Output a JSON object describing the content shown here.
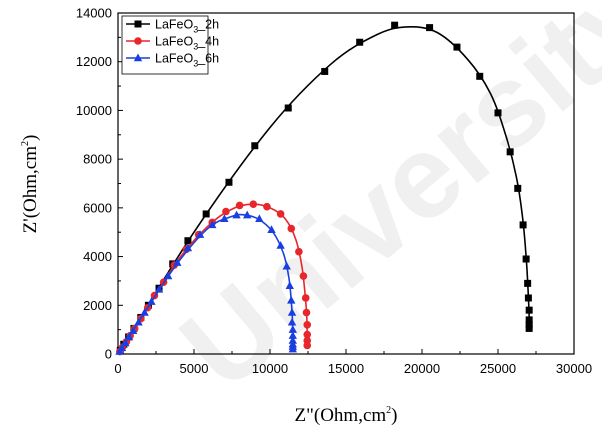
{
  "watermark": "University",
  "chart_data": {
    "type": "scatter",
    "xlabel": {
      "main": "Z\"(Ohm,cm",
      "sup": "2",
      "end": ")"
    },
    "ylabel": {
      "main": "Z'(Ohm,cm",
      "sup": "2",
      "end": ")"
    },
    "xlim": [
      0,
      30000
    ],
    "ylim": [
      0,
      14000
    ],
    "xticks": [
      0,
      5000,
      10000,
      15000,
      20000,
      25000,
      30000
    ],
    "yticks": [
      0,
      2000,
      4000,
      6000,
      8000,
      10000,
      12000,
      14000
    ],
    "legend_position": "top-left",
    "grid": false,
    "series": [
      {
        "name": {
          "pre": "LaFeO",
          "sub": "3",
          "post": "_2h"
        },
        "color": "#000000",
        "marker": "square",
        "points": [
          [
            150,
            150
          ],
          [
            380,
            400
          ],
          [
            700,
            700
          ],
          [
            1050,
            1050
          ],
          [
            1500,
            1500
          ],
          [
            2000,
            2000
          ],
          [
            2700,
            2700
          ],
          [
            3600,
            3700
          ],
          [
            4600,
            4650
          ],
          [
            5800,
            5750
          ],
          [
            7300,
            7050
          ],
          [
            9000,
            8550
          ],
          [
            11200,
            10100
          ],
          [
            13600,
            11600
          ],
          [
            15900,
            12800
          ],
          [
            18200,
            13500
          ],
          [
            20500,
            13400
          ],
          [
            22300,
            12600
          ],
          [
            23800,
            11400
          ],
          [
            25000,
            9900
          ],
          [
            25800,
            8300
          ],
          [
            26300,
            6800
          ],
          [
            26650,
            5300
          ],
          [
            26850,
            3900
          ],
          [
            26950,
            2900
          ],
          [
            27000,
            2300
          ],
          [
            27050,
            1800
          ],
          [
            27050,
            1400
          ],
          [
            27050,
            1200
          ],
          [
            27050,
            1050
          ]
        ],
        "curve": [
          [
            0,
            0
          ],
          [
            5000,
            5000
          ],
          [
            10000,
            9300
          ],
          [
            14000,
            11900
          ],
          [
            17000,
            13100
          ],
          [
            19000,
            13430
          ],
          [
            21000,
            13200
          ],
          [
            23000,
            12100
          ],
          [
            24500,
            10700
          ],
          [
            25500,
            9000
          ],
          [
            26200,
            7300
          ],
          [
            26600,
            5700
          ],
          [
            26850,
            4000
          ],
          [
            26980,
            2600
          ],
          [
            27050,
            1500
          ],
          [
            27050,
            1000
          ]
        ]
      },
      {
        "name": {
          "pre": "LaFeO",
          "sub": "3",
          "post": "_4h"
        },
        "color": "#e8262b",
        "marker": "circle",
        "points": [
          [
            120,
            100
          ],
          [
            300,
            280
          ],
          [
            550,
            500
          ],
          [
            800,
            750
          ],
          [
            1100,
            1050
          ],
          [
            1500,
            1450
          ],
          [
            1950,
            1900
          ],
          [
            2400,
            2400
          ],
          [
            3000,
            2950
          ],
          [
            3700,
            3650
          ],
          [
            4500,
            4300
          ],
          [
            5300,
            4900
          ],
          [
            6200,
            5400
          ],
          [
            7100,
            5850
          ],
          [
            8000,
            6100
          ],
          [
            8900,
            6150
          ],
          [
            9800,
            6050
          ],
          [
            10700,
            5750
          ],
          [
            11400,
            5150
          ],
          [
            11900,
            4200
          ],
          [
            12200,
            3200
          ],
          [
            12350,
            2300
          ],
          [
            12400,
            1700
          ],
          [
            12450,
            1200
          ],
          [
            12450,
            800
          ],
          [
            12450,
            550
          ],
          [
            12450,
            350
          ]
        ],
        "curve": [
          [
            0,
            0
          ],
          [
            2000,
            1950
          ],
          [
            4000,
            3900
          ],
          [
            6000,
            5300
          ],
          [
            7500,
            5950
          ],
          [
            8800,
            6150
          ],
          [
            10000,
            6000
          ],
          [
            11000,
            5550
          ],
          [
            11700,
            4700
          ],
          [
            12100,
            3600
          ],
          [
            12300,
            2500
          ],
          [
            12420,
            1500
          ],
          [
            12450,
            300
          ]
        ]
      },
      {
        "name": {
          "pre": "LaFeO",
          "sub": "3",
          "post": "_6h"
        },
        "color": "#1a3fe0",
        "marker": "triangle",
        "points": [
          [
            100,
            100
          ],
          [
            260,
            250
          ],
          [
            480,
            450
          ],
          [
            730,
            700
          ],
          [
            1000,
            950
          ],
          [
            1350,
            1300
          ],
          [
            1750,
            1700
          ],
          [
            2200,
            2150
          ],
          [
            2700,
            2650
          ],
          [
            3300,
            3200
          ],
          [
            3900,
            3750
          ],
          [
            4600,
            4350
          ],
          [
            5400,
            4900
          ],
          [
            6200,
            5300
          ],
          [
            7000,
            5550
          ],
          [
            7800,
            5700
          ],
          [
            8500,
            5700
          ],
          [
            9300,
            5550
          ],
          [
            10100,
            5100
          ],
          [
            10700,
            4450
          ],
          [
            11100,
            3600
          ],
          [
            11300,
            2800
          ],
          [
            11400,
            2200
          ],
          [
            11450,
            1700
          ],
          [
            11450,
            1300
          ],
          [
            11500,
            1000
          ],
          [
            11500,
            750
          ],
          [
            11500,
            550
          ],
          [
            11500,
            400
          ],
          [
            11500,
            300
          ],
          [
            11500,
            200
          ]
        ],
        "curve": [
          [
            0,
            0
          ],
          [
            2000,
            1950
          ],
          [
            4000,
            3800
          ],
          [
            6000,
            5200
          ],
          [
            7500,
            5650
          ],
          [
            8200,
            5720
          ],
          [
            9200,
            5550
          ],
          [
            10200,
            5000
          ],
          [
            10900,
            4100
          ],
          [
            11250,
            3100
          ],
          [
            11420,
            2000
          ],
          [
            11500,
            1000
          ],
          [
            11500,
            150
          ]
        ]
      }
    ]
  }
}
